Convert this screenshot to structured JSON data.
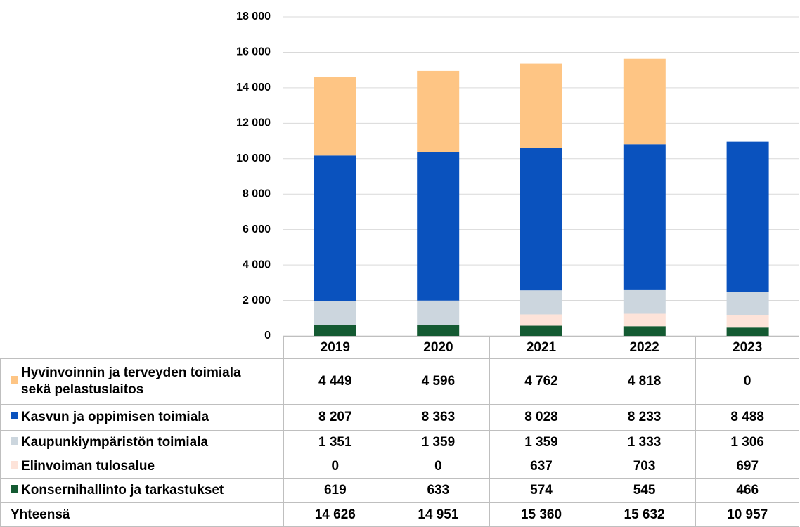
{
  "chart_data": {
    "type": "stacked-bar",
    "categories": [
      "2019",
      "2020",
      "2021",
      "2022",
      "2023"
    ],
    "series": [
      {
        "name": "Hyvinvoinnin ja terveyden toimiala sekä pelastuslaitos",
        "color": "#fec584",
        "values": [
          4449,
          4596,
          4762,
          4818,
          0
        ],
        "value_labels": [
          "4 449",
          "4 596",
          "4 762",
          "4 818",
          "0"
        ]
      },
      {
        "name": "Kasvun ja oppimisen toimiala",
        "color": "#0a52be",
        "values": [
          8207,
          8363,
          8028,
          8233,
          8488
        ],
        "value_labels": [
          "8 207",
          "8 363",
          "8 028",
          "8 233",
          "8 488"
        ]
      },
      {
        "name": "Kaupunkiympäristön toimiala",
        "color": "#ccd6de",
        "values": [
          1351,
          1359,
          1359,
          1333,
          1306
        ],
        "value_labels": [
          "1 351",
          "1 359",
          "1 359",
          "1 333",
          "1 306"
        ]
      },
      {
        "name": "Elinvoiman tulosalue",
        "color": "#fde3d9",
        "values": [
          0,
          0,
          637,
          703,
          697
        ],
        "value_labels": [
          "0",
          "0",
          "637",
          "703",
          "697"
        ]
      },
      {
        "name": "Konsernihallinto ja tarkastukset",
        "color": "#145a32",
        "values": [
          619,
          633,
          574,
          545,
          466
        ],
        "value_labels": [
          "619",
          "633",
          "574",
          "545",
          "466"
        ]
      }
    ],
    "totals": {
      "name": "Yhteensä",
      "values": [
        14626,
        14951,
        15360,
        15632,
        10957
      ],
      "value_labels": [
        "14 626",
        "14 951",
        "15 360",
        "15 632",
        "10 957"
      ]
    },
    "ylim": [
      0,
      18000
    ],
    "yticks": [
      0,
      {
        "value": 2000,
        "label": "2 000"
      },
      {
        "value": 4000,
        "label": "4 000"
      },
      {
        "value": 6000,
        "label": "6 000"
      },
      {
        "value": 8000,
        "label": "8 000"
      },
      {
        "value": 10000,
        "label": "10 000"
      },
      {
        "value": 12000,
        "label": "12 000"
      },
      {
        "value": 14000,
        "label": "14 000"
      },
      {
        "value": 16000,
        "label": "16 000"
      },
      {
        "value": 18000,
        "label": "18 000"
      }
    ],
    "grid": true
  }
}
